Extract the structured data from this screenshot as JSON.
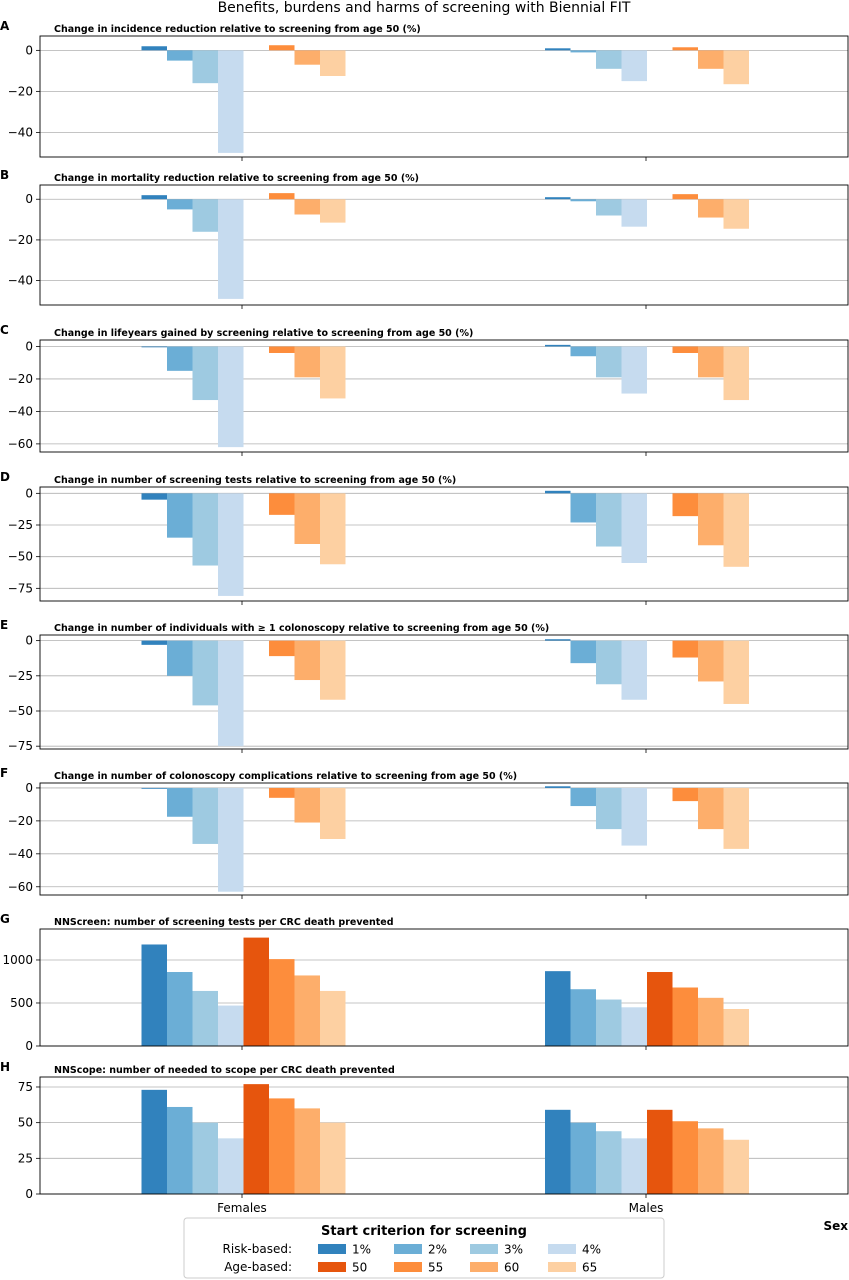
{
  "title": "Benefits, burdens and harms of screening with Biennial FIT",
  "xlabel": "Sex",
  "categories": [
    "Females",
    "Males"
  ],
  "legend": {
    "title": "Start criterion for screening",
    "row_labels": [
      "Risk-based:",
      "Age-based:"
    ],
    "risk_labels": [
      "1%",
      "2%",
      "3%",
      "4%"
    ],
    "age_labels": [
      "50",
      "55",
      "60",
      "65"
    ]
  },
  "colors": {
    "risk": [
      "#3182bd",
      "#6baed6",
      "#9ecae1",
      "#c6dbef"
    ],
    "age": [
      "#e6550d",
      "#fd8d3c",
      "#fdae6b",
      "#fdd0a2"
    ]
  },
  "chart_data": [
    {
      "type": "bar",
      "letter": "A",
      "title": "Change in incidence reduction relative to screening from age 50 (%)",
      "categories": [
        "Females",
        "Males"
      ],
      "ylim": [
        -52,
        7
      ],
      "yticks": [
        0,
        -20,
        -40
      ],
      "grid": true,
      "series": [
        {
          "name": "1%",
          "values": [
            2,
            1
          ]
        },
        {
          "name": "2%",
          "values": [
            -5,
            -1
          ]
        },
        {
          "name": "3%",
          "values": [
            -16,
            -9
          ]
        },
        {
          "name": "4%",
          "values": [
            -50,
            -15
          ]
        },
        {
          "name": "50",
          "values": [
            null,
            null
          ]
        },
        {
          "name": "55",
          "values": [
            2.5,
            1.5
          ]
        },
        {
          "name": "60",
          "values": [
            -7,
            -9
          ]
        },
        {
          "name": "65",
          "values": [
            -12.5,
            -16.5
          ]
        }
      ]
    },
    {
      "type": "bar",
      "letter": "B",
      "title": "Change in mortality reduction relative to screening from age 50 (%)",
      "categories": [
        "Females",
        "Males"
      ],
      "ylim": [
        -52,
        7
      ],
      "yticks": [
        0,
        -20,
        -40
      ],
      "grid": true,
      "series": [
        {
          "name": "1%",
          "values": [
            2,
            1
          ]
        },
        {
          "name": "2%",
          "values": [
            -5,
            -1
          ]
        },
        {
          "name": "3%",
          "values": [
            -16,
            -8
          ]
        },
        {
          "name": "4%",
          "values": [
            -49,
            -13.5
          ]
        },
        {
          "name": "50",
          "values": [
            null,
            null
          ]
        },
        {
          "name": "55",
          "values": [
            3,
            2.5
          ]
        },
        {
          "name": "60",
          "values": [
            -7.5,
            -9
          ]
        },
        {
          "name": "65",
          "values": [
            -11.5,
            -14.5
          ]
        }
      ]
    },
    {
      "type": "bar",
      "letter": "C",
      "title": "Change in lifeyears gained by screening relative to screening from age 50 (%)",
      "categories": [
        "Females",
        "Males"
      ],
      "ylim": [
        -65,
        4
      ],
      "yticks": [
        0,
        -20,
        -40,
        -60
      ],
      "grid": true,
      "series": [
        {
          "name": "1%",
          "values": [
            -0.5,
            1
          ]
        },
        {
          "name": "2%",
          "values": [
            -15,
            -6
          ]
        },
        {
          "name": "3%",
          "values": [
            -33,
            -19
          ]
        },
        {
          "name": "4%",
          "values": [
            -62,
            -29
          ]
        },
        {
          "name": "50",
          "values": [
            null,
            null
          ]
        },
        {
          "name": "55",
          "values": [
            -4,
            -4
          ]
        },
        {
          "name": "60",
          "values": [
            -19,
            -19
          ]
        },
        {
          "name": "65",
          "values": [
            -32,
            -33
          ]
        }
      ]
    },
    {
      "type": "bar",
      "letter": "D",
      "title": "Change in number of screening tests relative to screening from age 50 (%)",
      "categories": [
        "Females",
        "Males"
      ],
      "ylim": [
        -85,
        5
      ],
      "yticks": [
        0,
        -25,
        -50,
        -75
      ],
      "grid": true,
      "series": [
        {
          "name": "1%",
          "values": [
            -5,
            2
          ]
        },
        {
          "name": "2%",
          "values": [
            -35,
            -23
          ]
        },
        {
          "name": "3%",
          "values": [
            -57,
            -42
          ]
        },
        {
          "name": "4%",
          "values": [
            -81,
            -55
          ]
        },
        {
          "name": "50",
          "values": [
            null,
            null
          ]
        },
        {
          "name": "55",
          "values": [
            -17,
            -18
          ]
        },
        {
          "name": "60",
          "values": [
            -40,
            -41
          ]
        },
        {
          "name": "65",
          "values": [
            -56,
            -58
          ]
        }
      ]
    },
    {
      "type": "bar",
      "letter": "E",
      "title": "Change in number of individuals with ≥ 1 colonoscopy relative to screening from age 50 (%)",
      "categories": [
        "Females",
        "Males"
      ],
      "ylim": [
        -77,
        4
      ],
      "yticks": [
        0,
        -25,
        -50,
        -75
      ],
      "grid": true,
      "series": [
        {
          "name": "1%",
          "values": [
            -3,
            1
          ]
        },
        {
          "name": "2%",
          "values": [
            -25,
            -16
          ]
        },
        {
          "name": "3%",
          "values": [
            -46,
            -31
          ]
        },
        {
          "name": "4%",
          "values": [
            -75,
            -42
          ]
        },
        {
          "name": "50",
          "values": [
            null,
            null
          ]
        },
        {
          "name": "55",
          "values": [
            -11,
            -12
          ]
        },
        {
          "name": "60",
          "values": [
            -28,
            -29
          ]
        },
        {
          "name": "65",
          "values": [
            -42,
            -45
          ]
        }
      ]
    },
    {
      "type": "bar",
      "letter": "F",
      "title": "Change in number of colonoscopy complications relative to screening from age 50 (%)",
      "categories": [
        "Females",
        "Males"
      ],
      "ylim": [
        -65,
        3
      ],
      "yticks": [
        0,
        -20,
        -40,
        -60
      ],
      "grid": true,
      "series": [
        {
          "name": "1%",
          "values": [
            -0.5,
            1
          ]
        },
        {
          "name": "2%",
          "values": [
            -17.5,
            -11
          ]
        },
        {
          "name": "3%",
          "values": [
            -34,
            -25
          ]
        },
        {
          "name": "4%",
          "values": [
            -63,
            -35
          ]
        },
        {
          "name": "50",
          "values": [
            null,
            null
          ]
        },
        {
          "name": "55",
          "values": [
            -6,
            -8
          ]
        },
        {
          "name": "60",
          "values": [
            -21,
            -25
          ]
        },
        {
          "name": "65",
          "values": [
            -31,
            -37
          ]
        }
      ]
    },
    {
      "type": "bar",
      "letter": "G",
      "title": "NNScreen: number of screening tests per CRC death prevented",
      "categories": [
        "Females",
        "Males"
      ],
      "ylim": [
        0,
        1360
      ],
      "yticks": [
        0,
        500,
        1000
      ],
      "grid": true,
      "series": [
        {
          "name": "1%",
          "values": [
            1180,
            870
          ]
        },
        {
          "name": "2%",
          "values": [
            860,
            660
          ]
        },
        {
          "name": "3%",
          "values": [
            640,
            540
          ]
        },
        {
          "name": "4%",
          "values": [
            470,
            450
          ]
        },
        {
          "name": "50",
          "values": [
            1260,
            860
          ]
        },
        {
          "name": "55",
          "values": [
            1010,
            680
          ]
        },
        {
          "name": "60",
          "values": [
            820,
            560
          ]
        },
        {
          "name": "65",
          "values": [
            640,
            430
          ]
        }
      ]
    },
    {
      "type": "bar",
      "letter": "H",
      "title": "NNScope: number of needed to scope per CRC death prevented",
      "categories": [
        "Females",
        "Males"
      ],
      "ylim": [
        0,
        82
      ],
      "yticks": [
        0,
        25,
        50,
        75
      ],
      "grid": true,
      "series": [
        {
          "name": "1%",
          "values": [
            73,
            59
          ]
        },
        {
          "name": "2%",
          "values": [
            61,
            50
          ]
        },
        {
          "name": "3%",
          "values": [
            50,
            44
          ]
        },
        {
          "name": "4%",
          "values": [
            39,
            39
          ]
        },
        {
          "name": "50",
          "values": [
            77,
            59
          ]
        },
        {
          "name": "55",
          "values": [
            67,
            51
          ]
        },
        {
          "name": "60",
          "values": [
            60,
            46
          ]
        },
        {
          "name": "65",
          "values": [
            50,
            38
          ]
        }
      ]
    }
  ]
}
